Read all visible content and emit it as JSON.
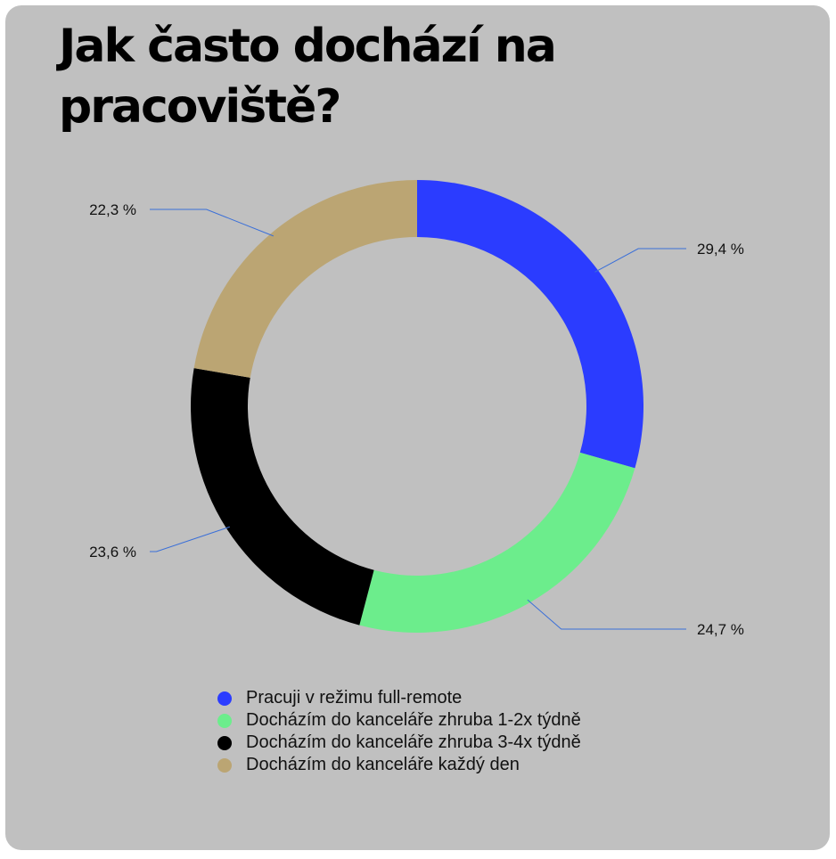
{
  "title": "Jak často dochází na pracoviště?",
  "chart_data": {
    "type": "pie",
    "variant": "donut",
    "title": "Jak často dochází na pracoviště?",
    "categories": [
      "Pracuji v režimu full-remote",
      "Docházím do kanceláře zhruba 1-2x týdně",
      "Docházím do kanceláře zhruba 3-4x týdně",
      "Docházím do kanceláře každý den"
    ],
    "values": [
      29.4,
      24.7,
      23.6,
      22.3
    ],
    "value_labels": [
      "29,4 %",
      "24,7 %",
      "23,6 %",
      "22,3 %"
    ],
    "colors": [
      "#2b3cff",
      "#6ced8c",
      "#000000",
      "#bba573"
    ],
    "leader_color": "#3a6fd8",
    "legend_position": "bottom"
  }
}
